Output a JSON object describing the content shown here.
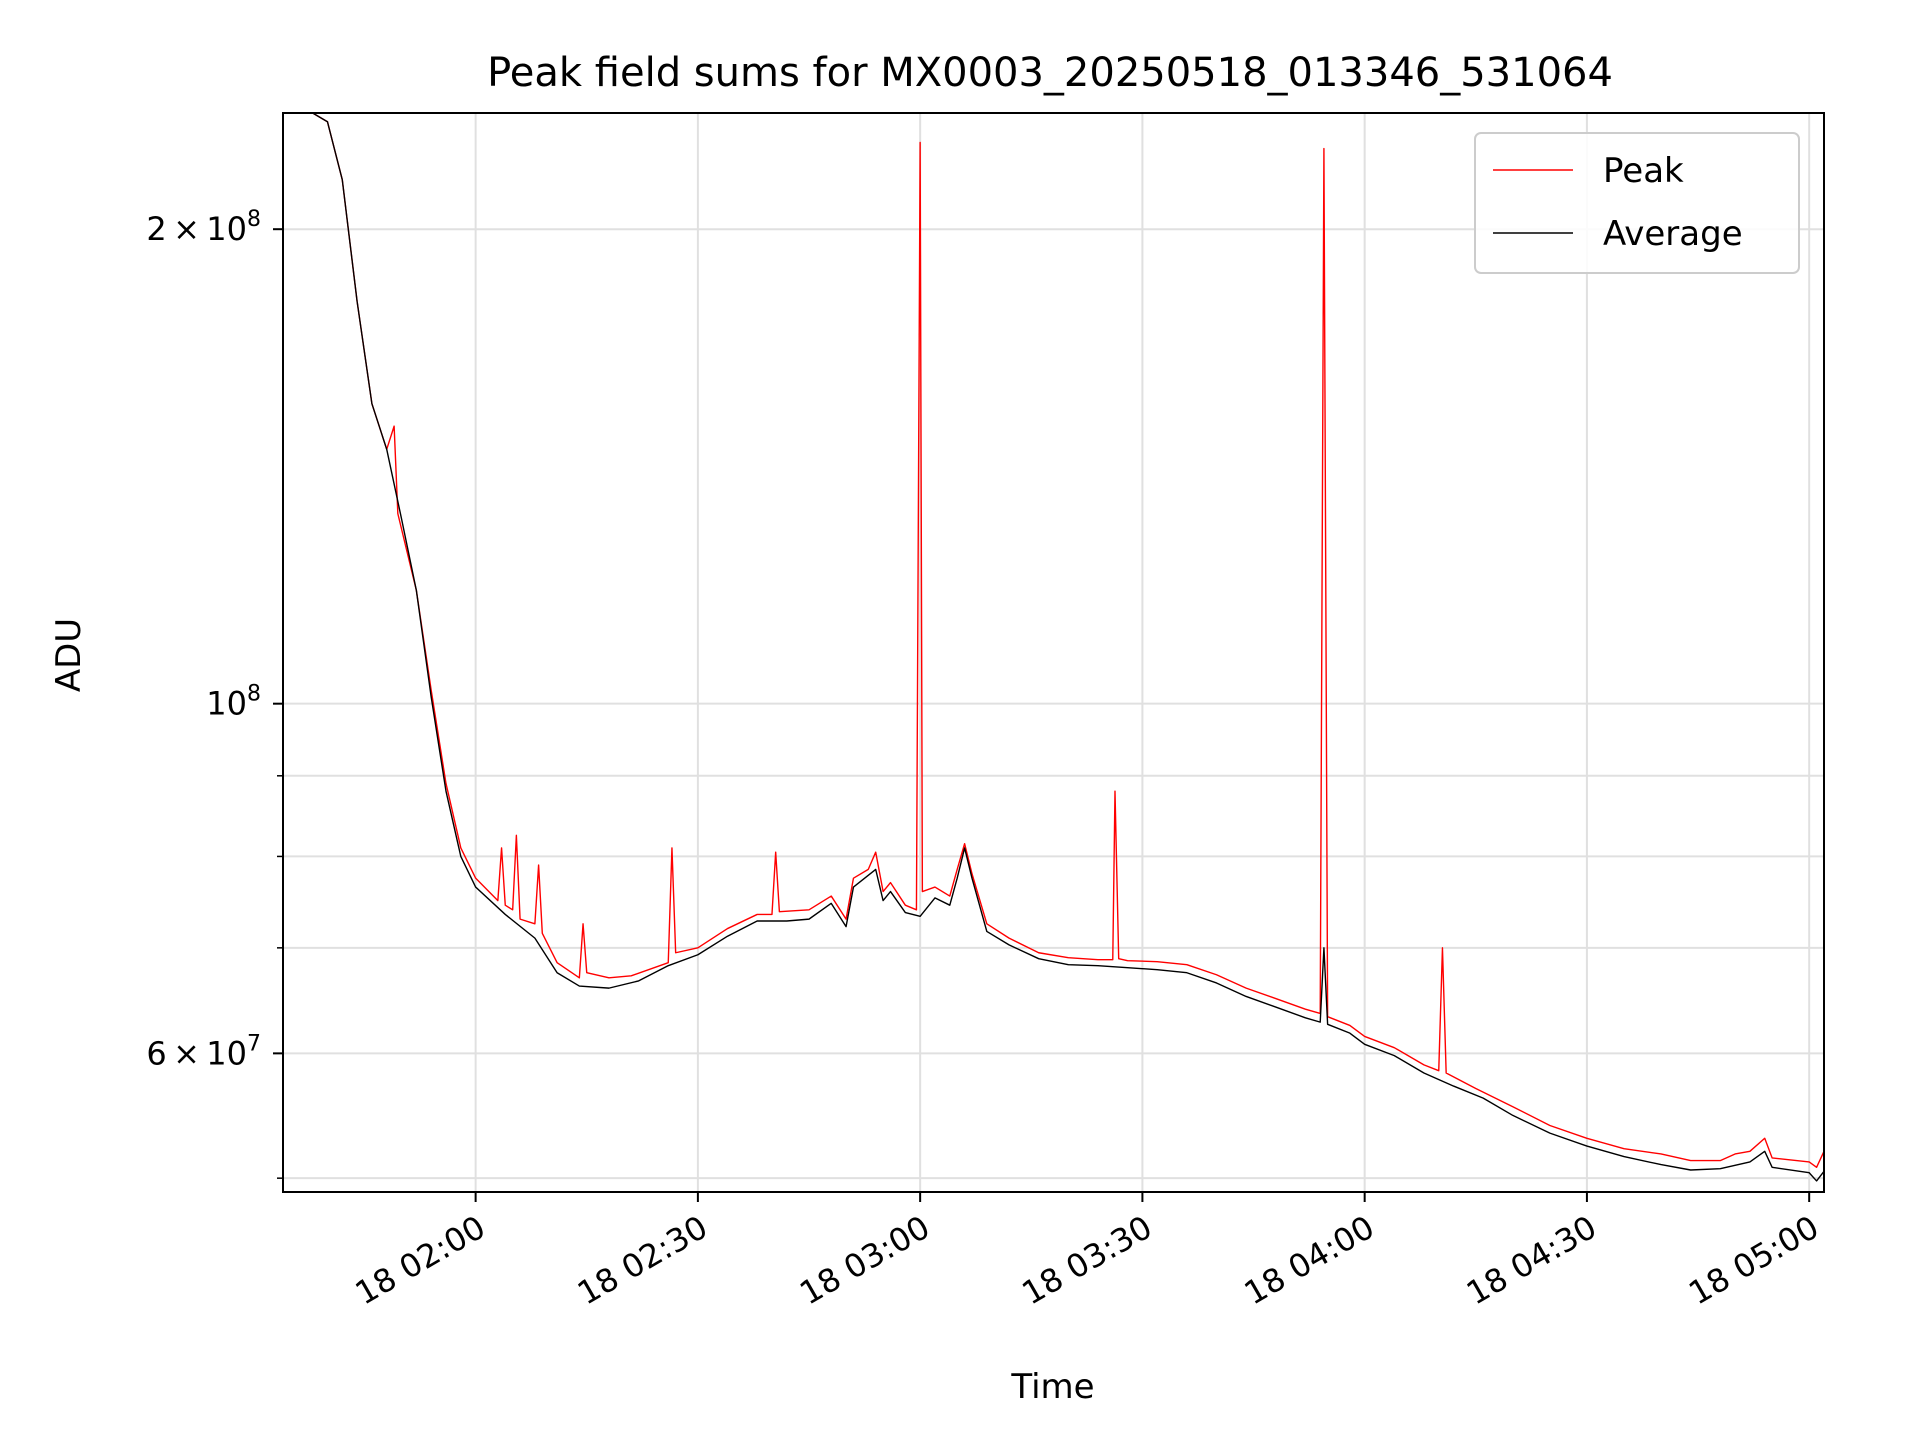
{
  "chart_data": {
    "type": "line",
    "title": "Peak field sums for MX0003_20250518_013346_531064",
    "xlabel": "Time",
    "ylabel": "ADU",
    "y_scale": "log",
    "ylim": [
      49000000,
      237000000
    ],
    "xlim": [
      "2025-05-18 01:34:00",
      "2025-05-18 05:02:00"
    ],
    "x_ticks": [
      {
        "value": "2025-05-18 02:00",
        "label": "18 02:00"
      },
      {
        "value": "2025-05-18 02:30",
        "label": "18 02:30"
      },
      {
        "value": "2025-05-18 03:00",
        "label": "18 03:00"
      },
      {
        "value": "2025-05-18 03:30",
        "label": "18 03:30"
      },
      {
        "value": "2025-05-18 04:00",
        "label": "18 04:00"
      },
      {
        "value": "2025-05-18 04:30",
        "label": "18 04:30"
      },
      {
        "value": "2025-05-18 05:00",
        "label": "18 05:00"
      }
    ],
    "y_ticks": [
      {
        "value": 200000000,
        "mantissa": "2",
        "exponent": "8"
      },
      {
        "value": 100000000,
        "mantissa": "",
        "exponent": "8"
      },
      {
        "value": 60000000,
        "mantissa": "6",
        "exponent": "7"
      }
    ],
    "y_minor_ticks": [
      50000000,
      70000000,
      80000000,
      90000000
    ],
    "grid": true,
    "legend": "top-right",
    "series": [
      {
        "name": "Peak",
        "color": "#ff0000",
        "points": [
          [
            "2025-05-18 01:34",
            237000000
          ],
          [
            "2025-05-18 01:38",
            237000000
          ],
          [
            "2025-05-18 01:40",
            234000000
          ],
          [
            "2025-05-18 01:42",
            215000000
          ],
          [
            "2025-05-18 01:44",
            180000000
          ],
          [
            "2025-05-18 01:46",
            155000000
          ],
          [
            "2025-05-18 01:48",
            145000000
          ],
          [
            "2025-05-18 01:49",
            150000000
          ],
          [
            "2025-05-18 01:49.5",
            132000000
          ],
          [
            "2025-05-18 01:52",
            118000000
          ],
          [
            "2025-05-18 01:54",
            102000000
          ],
          [
            "2025-05-18 01:56",
            89000000
          ],
          [
            "2025-05-18 01:58",
            81000000
          ],
          [
            "2025-05-18 02:00",
            77500000
          ],
          [
            "2025-05-18 02:03",
            75000000
          ],
          [
            "2025-05-18 02:03.5",
            81000000
          ],
          [
            "2025-05-18 02:04",
            74500000
          ],
          [
            "2025-05-18 02:05",
            74000000
          ],
          [
            "2025-05-18 02:05.5",
            82500000
          ],
          [
            "2025-05-18 02:06",
            73000000
          ],
          [
            "2025-05-18 02:08",
            72500000
          ],
          [
            "2025-05-18 02:08.5",
            79000000
          ],
          [
            "2025-05-18 02:09",
            71500000
          ],
          [
            "2025-05-18 02:11",
            68500000
          ],
          [
            "2025-05-18 02:14",
            67000000
          ],
          [
            "2025-05-18 02:14.5",
            72500000
          ],
          [
            "2025-05-18 02:15",
            67500000
          ],
          [
            "2025-05-18 02:18",
            67000000
          ],
          [
            "2025-05-18 02:21",
            67200000
          ],
          [
            "2025-05-18 02:26",
            68500000
          ],
          [
            "2025-05-18 02:26.5",
            81000000
          ],
          [
            "2025-05-18 02:27",
            69500000
          ],
          [
            "2025-05-18 02:30",
            70000000
          ],
          [
            "2025-05-18 02:34",
            72000000
          ],
          [
            "2025-05-18 02:38",
            73500000
          ],
          [
            "2025-05-18 02:40",
            73500000
          ],
          [
            "2025-05-18 02:40.5",
            80500000
          ],
          [
            "2025-05-18 02:41",
            73800000
          ],
          [
            "2025-05-18 02:45",
            74000000
          ],
          [
            "2025-05-18 02:48",
            75500000
          ],
          [
            "2025-05-18 02:50",
            73000000
          ],
          [
            "2025-05-18 02:51",
            77500000
          ],
          [
            "2025-05-18 02:53",
            78500000
          ],
          [
            "2025-05-18 02:54",
            80500000
          ],
          [
            "2025-05-18 02:55",
            76000000
          ],
          [
            "2025-05-18 02:56",
            77000000
          ],
          [
            "2025-05-18 02:58",
            74500000
          ],
          [
            "2025-05-18 02:59.5",
            74000000
          ],
          [
            "2025-05-18 03:00",
            227000000
          ],
          [
            "2025-05-18 03:00.3",
            76000000
          ],
          [
            "2025-05-18 03:02",
            76500000
          ],
          [
            "2025-05-18 03:04",
            75500000
          ],
          [
            "2025-05-18 03:05",
            78500000
          ],
          [
            "2025-05-18 03:06",
            81500000
          ],
          [
            "2025-05-18 03:07",
            78000000
          ],
          [
            "2025-05-18 03:09",
            72500000
          ],
          [
            "2025-05-18 03:12",
            71000000
          ],
          [
            "2025-05-18 03:16",
            69500000
          ],
          [
            "2025-05-18 03:20",
            69000000
          ],
          [
            "2025-05-18 03:24",
            68800000
          ],
          [
            "2025-05-18 03:26",
            68800000
          ],
          [
            "2025-05-18 03:26.3",
            88000000
          ],
          [
            "2025-05-18 03:26.8",
            68900000
          ],
          [
            "2025-05-18 03:28",
            68700000
          ],
          [
            "2025-05-18 03:32",
            68600000
          ],
          [
            "2025-05-18 03:36",
            68300000
          ],
          [
            "2025-05-18 03:40",
            67300000
          ],
          [
            "2025-05-18 03:44",
            66000000
          ],
          [
            "2025-05-18 03:48",
            65000000
          ],
          [
            "2025-05-18 03:52",
            64000000
          ],
          [
            "2025-05-18 03:54",
            63600000
          ],
          [
            "2025-05-18 03:54.5",
            225000000
          ],
          [
            "2025-05-18 03:55",
            63300000
          ],
          [
            "2025-05-18 03:58",
            62500000
          ],
          [
            "2025-05-18 04:00",
            61500000
          ],
          [
            "2025-05-18 04:04",
            60500000
          ],
          [
            "2025-05-18 04:08",
            59000000
          ],
          [
            "2025-05-18 04:10",
            58500000
          ],
          [
            "2025-05-18 04:10.5",
            70000000
          ],
          [
            "2025-05-18 04:11",
            58300000
          ],
          [
            "2025-05-18 04:15",
            57000000
          ],
          [
            "2025-05-18 04:20",
            55500000
          ],
          [
            "2025-05-18 04:25",
            54000000
          ],
          [
            "2025-05-18 04:30",
            53000000
          ],
          [
            "2025-05-18 04:35",
            52200000
          ],
          [
            "2025-05-18 04:40",
            51800000
          ],
          [
            "2025-05-18 04:44",
            51300000
          ],
          [
            "2025-05-18 04:48",
            51300000
          ],
          [
            "2025-05-18 04:50",
            51800000
          ],
          [
            "2025-05-18 04:52",
            52000000
          ],
          [
            "2025-05-18 04:54",
            53000000
          ],
          [
            "2025-05-18 04:55",
            51500000
          ],
          [
            "2025-05-18 05:00",
            51200000
          ],
          [
            "2025-05-18 05:01",
            50800000
          ],
          [
            "2025-05-18 05:02",
            52000000
          ]
        ]
      },
      {
        "name": "Average",
        "color": "#000000",
        "points": [
          [
            "2025-05-18 01:34",
            237000000
          ],
          [
            "2025-05-18 01:38",
            237000000
          ],
          [
            "2025-05-18 01:40",
            234000000
          ],
          [
            "2025-05-18 01:42",
            215000000
          ],
          [
            "2025-05-18 01:44",
            180000000
          ],
          [
            "2025-05-18 01:46",
            155000000
          ],
          [
            "2025-05-18 01:48",
            145000000
          ],
          [
            "2025-05-18 01:50",
            131000000
          ],
          [
            "2025-05-18 01:52",
            118000000
          ],
          [
            "2025-05-18 01:54",
            101000000
          ],
          [
            "2025-05-18 01:56",
            88000000
          ],
          [
            "2025-05-18 01:58",
            80000000
          ],
          [
            "2025-05-18 02:00",
            76500000
          ],
          [
            "2025-05-18 02:04",
            73500000
          ],
          [
            "2025-05-18 02:08",
            71000000
          ],
          [
            "2025-05-18 02:11",
            67500000
          ],
          [
            "2025-05-18 02:14",
            66200000
          ],
          [
            "2025-05-18 02:18",
            66000000
          ],
          [
            "2025-05-18 02:22",
            66700000
          ],
          [
            "2025-05-18 02:26",
            68200000
          ],
          [
            "2025-05-18 02:30",
            69300000
          ],
          [
            "2025-05-18 02:34",
            71200000
          ],
          [
            "2025-05-18 02:38",
            72800000
          ],
          [
            "2025-05-18 02:42",
            72800000
          ],
          [
            "2025-05-18 02:45",
            73000000
          ],
          [
            "2025-05-18 02:48",
            74700000
          ],
          [
            "2025-05-18 02:50",
            72200000
          ],
          [
            "2025-05-18 02:51",
            76500000
          ],
          [
            "2025-05-18 02:54",
            78500000
          ],
          [
            "2025-05-18 02:55",
            75000000
          ],
          [
            "2025-05-18 02:56",
            76000000
          ],
          [
            "2025-05-18 02:58",
            73700000
          ],
          [
            "2025-05-18 03:00",
            73300000
          ],
          [
            "2025-05-18 03:02",
            75300000
          ],
          [
            "2025-05-18 03:04",
            74500000
          ],
          [
            "2025-05-18 03:05",
            77500000
          ],
          [
            "2025-05-18 03:06",
            81000000
          ],
          [
            "2025-05-18 03:07",
            77500000
          ],
          [
            "2025-05-18 03:09",
            71700000
          ],
          [
            "2025-05-18 03:12",
            70300000
          ],
          [
            "2025-05-18 03:16",
            68900000
          ],
          [
            "2025-05-18 03:20",
            68300000
          ],
          [
            "2025-05-18 03:24",
            68200000
          ],
          [
            "2025-05-18 03:28",
            68000000
          ],
          [
            "2025-05-18 03:32",
            67800000
          ],
          [
            "2025-05-18 03:36",
            67500000
          ],
          [
            "2025-05-18 03:40",
            66500000
          ],
          [
            "2025-05-18 03:44",
            65200000
          ],
          [
            "2025-05-18 03:48",
            64200000
          ],
          [
            "2025-05-18 03:52",
            63200000
          ],
          [
            "2025-05-18 03:54",
            62800000
          ],
          [
            "2025-05-18 03:54.5",
            70000000
          ],
          [
            "2025-05-18 03:55",
            62600000
          ],
          [
            "2025-05-18 03:58",
            61800000
          ],
          [
            "2025-05-18 04:00",
            60800000
          ],
          [
            "2025-05-18 04:04",
            59800000
          ],
          [
            "2025-05-18 04:08",
            58300000
          ],
          [
            "2025-05-18 04:12",
            57200000
          ],
          [
            "2025-05-18 04:16",
            56200000
          ],
          [
            "2025-05-18 04:20",
            54800000
          ],
          [
            "2025-05-18 04:25",
            53400000
          ],
          [
            "2025-05-18 04:30",
            52400000
          ],
          [
            "2025-05-18 04:35",
            51600000
          ],
          [
            "2025-05-18 04:40",
            51000000
          ],
          [
            "2025-05-18 04:44",
            50600000
          ],
          [
            "2025-05-18 04:48",
            50700000
          ],
          [
            "2025-05-18 04:52",
            51200000
          ],
          [
            "2025-05-18 04:54",
            52000000
          ],
          [
            "2025-05-18 04:55",
            50800000
          ],
          [
            "2025-05-18 05:00",
            50400000
          ],
          [
            "2025-05-18 05:01",
            49800000
          ],
          [
            "2025-05-18 05:02",
            50500000
          ]
        ]
      }
    ]
  }
}
